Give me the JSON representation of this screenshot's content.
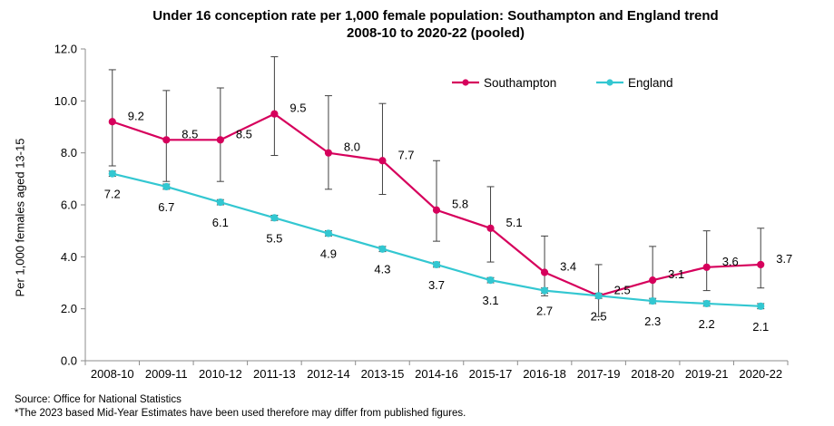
{
  "chart_data": {
    "type": "line",
    "title": "Under 16 conception rate per 1,000 female population: Southampton and England trend",
    "subtitle": "2008-10 to 2020-22 (pooled)",
    "xlabel": "",
    "ylabel": "Per 1,000 females aged 13-15",
    "ylim": [
      0,
      12
    ],
    "yticks": [
      "0.0",
      "2.0",
      "4.0",
      "6.0",
      "8.0",
      "10.0",
      "12.0"
    ],
    "grid": false,
    "legend_position": "top-right",
    "categories": [
      "2008-10",
      "2009-11",
      "2010-12",
      "2011-13",
      "2012-14",
      "2013-15",
      "2014-16",
      "2015-17",
      "2016-18",
      "2017-19",
      "2018-20",
      "2019-21",
      "2020-22"
    ],
    "series": [
      {
        "name": "Southampton",
        "color": "#d6005c",
        "values": [
          9.2,
          8.5,
          8.5,
          9.5,
          8.0,
          7.7,
          5.8,
          5.1,
          3.4,
          2.5,
          3.1,
          3.6,
          3.7
        ],
        "labels": [
          "9.2",
          "8.5",
          "8.5",
          "9.5",
          "8.0",
          "7.7",
          "5.8",
          "5.1",
          "3.4",
          "2.5",
          "3.1",
          "3.6",
          "3.7"
        ],
        "error_low": [
          7.5,
          6.9,
          6.9,
          7.9,
          6.6,
          6.4,
          4.6,
          3.8,
          2.5,
          1.7,
          2.3,
          2.7,
          2.8
        ],
        "error_high": [
          11.2,
          10.4,
          10.5,
          11.7,
          10.2,
          9.9,
          7.7,
          6.7,
          4.8,
          3.7,
          4.4,
          5.0,
          5.1
        ]
      },
      {
        "name": "England",
        "color": "#33c7d1",
        "values": [
          7.2,
          6.7,
          6.1,
          5.5,
          4.9,
          4.3,
          3.7,
          3.1,
          2.7,
          2.5,
          2.3,
          2.2,
          2.1
        ],
        "labels": [
          "7.2",
          "6.7",
          "6.1",
          "5.5",
          "4.9",
          "4.3",
          "3.7",
          "3.1",
          "2.7",
          "2.5",
          "2.3",
          "2.2",
          "2.1"
        ],
        "error_low": [
          7.1,
          6.6,
          6.0,
          5.4,
          4.8,
          4.2,
          3.6,
          3.0,
          2.6,
          2.4,
          2.2,
          2.1,
          2.0
        ],
        "error_high": [
          7.3,
          6.8,
          6.2,
          5.6,
          5.0,
          4.4,
          3.8,
          3.2,
          2.8,
          2.6,
          2.4,
          2.3,
          2.2
        ]
      }
    ]
  },
  "footer": {
    "source": "Source:  Office for National Statistics",
    "note": "*The 2023 based Mid-Year Estimates have been used therefore may differ from published figures."
  }
}
